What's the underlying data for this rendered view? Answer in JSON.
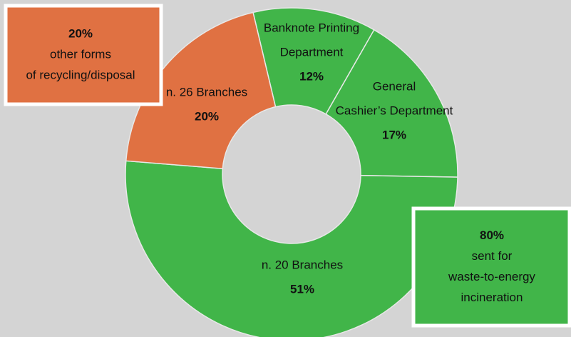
{
  "chart_data": {
    "type": "donut",
    "categories": [
      [
        "Banknote Printing",
        "Department"
      ],
      [
        "General",
        "Cashier’s Department"
      ],
      [
        "n. 20 Branches"
      ],
      [
        "n. 26 Branches"
      ]
    ],
    "values": [
      12,
      17,
      51,
      20
    ],
    "value_labels": [
      "12%",
      "17%",
      "51%",
      "20%"
    ],
    "colors": [
      "#41b549",
      "#41b549",
      "#41b549",
      "#e07142"
    ],
    "callouts": [
      {
        "title": "20%",
        "lines": [
          "other forms",
          "of recycling/disposal"
        ],
        "color": "#e07142"
      },
      {
        "title": "80%",
        "lines": [
          "sent for",
          "waste-to-energy",
          "incineration"
        ],
        "color": "#41b549"
      }
    ]
  }
}
